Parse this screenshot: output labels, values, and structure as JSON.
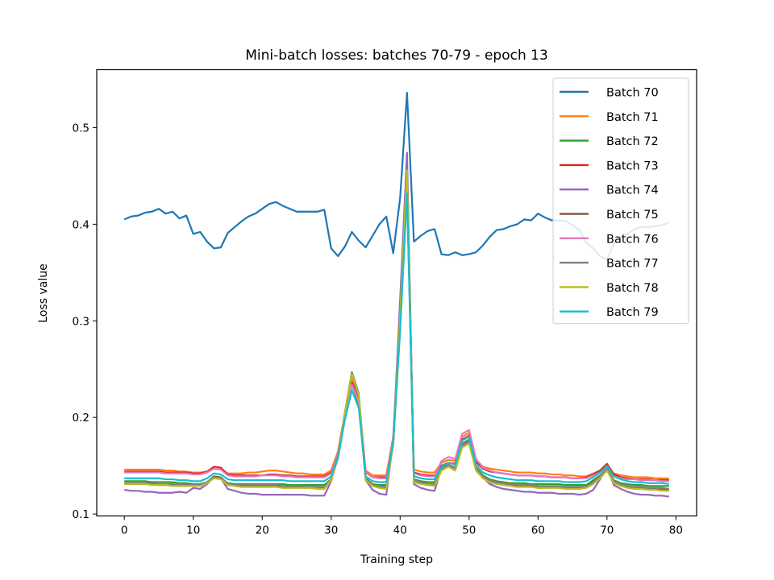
{
  "chart_data": {
    "type": "line",
    "title": "Mini-batch losses: batches 70-79 - epoch 13",
    "xlabel": "Training step",
    "ylabel": "Loss value",
    "xlim": [
      -4,
      83
    ],
    "ylim": [
      0.098,
      0.56
    ],
    "xticks": [
      0,
      10,
      20,
      30,
      40,
      50,
      60,
      70,
      80
    ],
    "yticks": [
      0.1,
      0.2,
      0.3,
      0.4,
      0.5
    ],
    "grid": false,
    "legend_position": "top-right",
    "series": [
      {
        "name": "Batch 70",
        "color": "#1f77b4",
        "values": [
          0.405,
          0.408,
          0.409,
          0.412,
          0.413,
          0.416,
          0.411,
          0.413,
          0.406,
          0.409,
          0.39,
          0.392,
          0.382,
          0.375,
          0.376,
          0.391,
          0.397,
          0.403,
          0.408,
          0.411,
          0.416,
          0.421,
          0.423,
          0.419,
          0.416,
          0.413,
          0.413,
          0.413,
          0.413,
          0.415,
          0.375,
          0.367,
          0.377,
          0.392,
          0.383,
          0.376,
          0.388,
          0.4,
          0.408,
          0.37,
          0.427,
          0.536,
          0.382,
          0.388,
          0.393,
          0.395,
          0.369,
          0.368,
          0.371,
          0.368,
          0.369,
          0.371,
          0.378,
          0.387,
          0.394,
          0.395,
          0.398,
          0.4,
          0.405,
          0.404,
          0.411,
          0.407,
          0.404,
          0.404,
          0.403,
          0.399,
          0.394,
          0.381,
          0.375,
          0.367,
          0.363,
          0.38,
          0.387,
          0.39,
          0.395,
          0.397,
          0.397,
          0.398,
          0.399,
          0.402
        ]
      },
      {
        "name": "Batch 71",
        "color": "#ff7f0e",
        "values": [
          0.146,
          0.146,
          0.146,
          0.146,
          0.146,
          0.146,
          0.145,
          0.145,
          0.144,
          0.144,
          0.143,
          0.143,
          0.144,
          0.147,
          0.146,
          0.142,
          0.142,
          0.142,
          0.143,
          0.143,
          0.144,
          0.145,
          0.145,
          0.144,
          0.143,
          0.142,
          0.142,
          0.141,
          0.141,
          0.141,
          0.145,
          0.165,
          0.205,
          0.238,
          0.22,
          0.145,
          0.14,
          0.14,
          0.14,
          0.18,
          0.3,
          0.445,
          0.146,
          0.144,
          0.143,
          0.143,
          0.153,
          0.156,
          0.155,
          0.18,
          0.184,
          0.156,
          0.149,
          0.147,
          0.146,
          0.145,
          0.144,
          0.143,
          0.143,
          0.143,
          0.142,
          0.142,
          0.141,
          0.141,
          0.14,
          0.14,
          0.139,
          0.139,
          0.142,
          0.145,
          0.15,
          0.142,
          0.14,
          0.139,
          0.138,
          0.138,
          0.138,
          0.137,
          0.137,
          0.137
        ]
      },
      {
        "name": "Batch 72",
        "color": "#2ca02c",
        "values": [
          0.134,
          0.134,
          0.134,
          0.134,
          0.133,
          0.133,
          0.133,
          0.133,
          0.132,
          0.132,
          0.131,
          0.131,
          0.133,
          0.138,
          0.137,
          0.132,
          0.131,
          0.131,
          0.131,
          0.131,
          0.131,
          0.131,
          0.131,
          0.131,
          0.13,
          0.13,
          0.13,
          0.13,
          0.13,
          0.13,
          0.136,
          0.158,
          0.2,
          0.234,
          0.214,
          0.137,
          0.131,
          0.13,
          0.13,
          0.172,
          0.292,
          0.438,
          0.136,
          0.134,
          0.133,
          0.133,
          0.146,
          0.15,
          0.148,
          0.173,
          0.177,
          0.148,
          0.14,
          0.136,
          0.134,
          0.133,
          0.132,
          0.132,
          0.132,
          0.131,
          0.131,
          0.131,
          0.131,
          0.131,
          0.13,
          0.13,
          0.13,
          0.13,
          0.135,
          0.14,
          0.146,
          0.135,
          0.132,
          0.131,
          0.13,
          0.13,
          0.129,
          0.129,
          0.129,
          0.129
        ]
      },
      {
        "name": "Batch 73",
        "color": "#d62728",
        "values": [
          0.144,
          0.144,
          0.144,
          0.144,
          0.144,
          0.144,
          0.143,
          0.143,
          0.143,
          0.143,
          0.142,
          0.142,
          0.144,
          0.149,
          0.148,
          0.141,
          0.14,
          0.14,
          0.14,
          0.14,
          0.14,
          0.141,
          0.141,
          0.14,
          0.14,
          0.139,
          0.139,
          0.139,
          0.139,
          0.139,
          0.143,
          0.162,
          0.203,
          0.236,
          0.218,
          0.143,
          0.138,
          0.138,
          0.138,
          0.178,
          0.298,
          0.442,
          0.143,
          0.141,
          0.14,
          0.14,
          0.15,
          0.153,
          0.152,
          0.177,
          0.181,
          0.154,
          0.147,
          0.144,
          0.143,
          0.142,
          0.141,
          0.14,
          0.14,
          0.14,
          0.139,
          0.139,
          0.138,
          0.138,
          0.138,
          0.137,
          0.137,
          0.138,
          0.141,
          0.145,
          0.152,
          0.141,
          0.138,
          0.137,
          0.136,
          0.136,
          0.136,
          0.135,
          0.135,
          0.135
        ]
      },
      {
        "name": "Batch 74",
        "color": "#9467bd",
        "values": [
          0.125,
          0.124,
          0.124,
          0.123,
          0.123,
          0.122,
          0.122,
          0.122,
          0.123,
          0.122,
          0.127,
          0.126,
          0.131,
          0.138,
          0.137,
          0.126,
          0.124,
          0.122,
          0.121,
          0.121,
          0.12,
          0.12,
          0.12,
          0.12,
          0.12,
          0.12,
          0.12,
          0.119,
          0.119,
          0.119,
          0.134,
          0.16,
          0.205,
          0.246,
          0.218,
          0.135,
          0.125,
          0.121,
          0.12,
          0.176,
          0.322,
          0.474,
          0.131,
          0.127,
          0.125,
          0.124,
          0.148,
          0.151,
          0.148,
          0.172,
          0.176,
          0.147,
          0.138,
          0.131,
          0.128,
          0.126,
          0.125,
          0.124,
          0.123,
          0.123,
          0.122,
          0.122,
          0.122,
          0.121,
          0.121,
          0.121,
          0.12,
          0.121,
          0.125,
          0.136,
          0.148,
          0.13,
          0.126,
          0.123,
          0.121,
          0.12,
          0.12,
          0.119,
          0.119,
          0.118
        ]
      },
      {
        "name": "Batch 75",
        "color": "#8c564b",
        "values": [
          0.131,
          0.131,
          0.131,
          0.131,
          0.131,
          0.13,
          0.13,
          0.13,
          0.129,
          0.129,
          0.13,
          0.13,
          0.133,
          0.139,
          0.138,
          0.131,
          0.13,
          0.129,
          0.129,
          0.129,
          0.129,
          0.129,
          0.129,
          0.128,
          0.128,
          0.128,
          0.128,
          0.128,
          0.128,
          0.127,
          0.136,
          0.159,
          0.203,
          0.244,
          0.222,
          0.136,
          0.13,
          0.128,
          0.127,
          0.174,
          0.305,
          0.456,
          0.134,
          0.132,
          0.131,
          0.13,
          0.146,
          0.15,
          0.146,
          0.17,
          0.174,
          0.146,
          0.138,
          0.134,
          0.132,
          0.131,
          0.13,
          0.129,
          0.129,
          0.129,
          0.128,
          0.128,
          0.128,
          0.128,
          0.127,
          0.127,
          0.127,
          0.128,
          0.132,
          0.138,
          0.146,
          0.133,
          0.13,
          0.128,
          0.127,
          0.127,
          0.126,
          0.126,
          0.126,
          0.125
        ]
      },
      {
        "name": "Batch 76",
        "color": "#e377c2",
        "values": [
          0.143,
          0.143,
          0.143,
          0.143,
          0.143,
          0.143,
          0.142,
          0.142,
          0.142,
          0.142,
          0.141,
          0.141,
          0.143,
          0.147,
          0.146,
          0.14,
          0.139,
          0.139,
          0.139,
          0.139,
          0.14,
          0.14,
          0.14,
          0.139,
          0.139,
          0.138,
          0.138,
          0.138,
          0.138,
          0.138,
          0.142,
          0.162,
          0.202,
          0.234,
          0.216,
          0.143,
          0.138,
          0.137,
          0.137,
          0.178,
          0.298,
          0.44,
          0.142,
          0.14,
          0.139,
          0.139,
          0.155,
          0.159,
          0.157,
          0.183,
          0.187,
          0.157,
          0.148,
          0.145,
          0.143,
          0.142,
          0.141,
          0.14,
          0.14,
          0.14,
          0.139,
          0.139,
          0.138,
          0.138,
          0.138,
          0.137,
          0.137,
          0.137,
          0.14,
          0.143,
          0.148,
          0.139,
          0.137,
          0.136,
          0.136,
          0.135,
          0.135,
          0.135,
          0.134,
          0.134
        ]
      },
      {
        "name": "Batch 77",
        "color": "#7f7f7f",
        "values": [
          0.132,
          0.132,
          0.132,
          0.132,
          0.132,
          0.131,
          0.131,
          0.131,
          0.13,
          0.13,
          0.13,
          0.13,
          0.133,
          0.138,
          0.137,
          0.131,
          0.13,
          0.13,
          0.13,
          0.13,
          0.13,
          0.13,
          0.13,
          0.129,
          0.129,
          0.129,
          0.129,
          0.128,
          0.128,
          0.128,
          0.136,
          0.16,
          0.205,
          0.247,
          0.225,
          0.136,
          0.13,
          0.129,
          0.128,
          0.174,
          0.306,
          0.458,
          0.135,
          0.133,
          0.131,
          0.131,
          0.147,
          0.151,
          0.147,
          0.171,
          0.175,
          0.147,
          0.139,
          0.135,
          0.133,
          0.132,
          0.131,
          0.13,
          0.13,
          0.13,
          0.129,
          0.129,
          0.129,
          0.129,
          0.128,
          0.128,
          0.128,
          0.128,
          0.133,
          0.139,
          0.147,
          0.134,
          0.131,
          0.129,
          0.128,
          0.128,
          0.127,
          0.127,
          0.127,
          0.126
        ]
      },
      {
        "name": "Batch 78",
        "color": "#bcbd22",
        "values": [
          0.131,
          0.131,
          0.131,
          0.131,
          0.13,
          0.13,
          0.13,
          0.129,
          0.129,
          0.129,
          0.129,
          0.129,
          0.132,
          0.137,
          0.136,
          0.13,
          0.129,
          0.128,
          0.128,
          0.128,
          0.128,
          0.128,
          0.128,
          0.127,
          0.127,
          0.127,
          0.127,
          0.127,
          0.126,
          0.126,
          0.135,
          0.159,
          0.204,
          0.245,
          0.223,
          0.135,
          0.129,
          0.127,
          0.126,
          0.173,
          0.304,
          0.456,
          0.133,
          0.131,
          0.13,
          0.129,
          0.145,
          0.149,
          0.145,
          0.169,
          0.173,
          0.145,
          0.137,
          0.133,
          0.131,
          0.13,
          0.129,
          0.128,
          0.128,
          0.128,
          0.127,
          0.127,
          0.127,
          0.127,
          0.126,
          0.126,
          0.126,
          0.127,
          0.131,
          0.137,
          0.145,
          0.132,
          0.129,
          0.127,
          0.126,
          0.126,
          0.125,
          0.125,
          0.124,
          0.124
        ]
      },
      {
        "name": "Batch 79",
        "color": "#17becf",
        "values": [
          0.137,
          0.137,
          0.137,
          0.137,
          0.137,
          0.137,
          0.136,
          0.136,
          0.135,
          0.135,
          0.134,
          0.134,
          0.137,
          0.142,
          0.141,
          0.136,
          0.135,
          0.135,
          0.135,
          0.135,
          0.135,
          0.135,
          0.135,
          0.135,
          0.134,
          0.134,
          0.134,
          0.134,
          0.134,
          0.134,
          0.139,
          0.159,
          0.198,
          0.228,
          0.21,
          0.139,
          0.134,
          0.133,
          0.133,
          0.175,
          0.29,
          0.432,
          0.139,
          0.137,
          0.136,
          0.136,
          0.149,
          0.153,
          0.151,
          0.176,
          0.18,
          0.151,
          0.143,
          0.14,
          0.138,
          0.137,
          0.136,
          0.135,
          0.135,
          0.135,
          0.134,
          0.134,
          0.134,
          0.134,
          0.133,
          0.133,
          0.133,
          0.134,
          0.138,
          0.143,
          0.15,
          0.139,
          0.136,
          0.134,
          0.133,
          0.133,
          0.132,
          0.132,
          0.132,
          0.131
        ]
      }
    ]
  }
}
